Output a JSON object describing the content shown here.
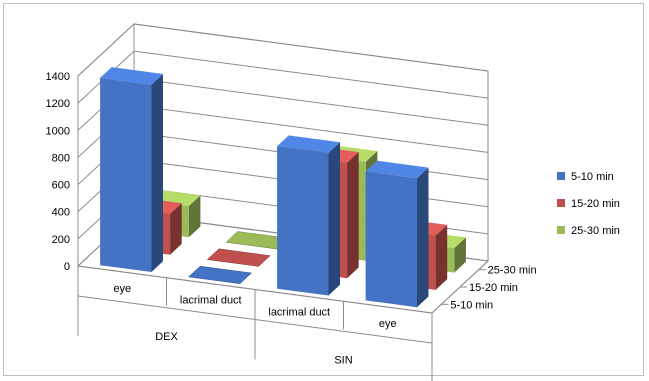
{
  "chart_data": {
    "type": "bar",
    "subtype": "3d-clustered-column",
    "title": "",
    "categories": [
      "eye",
      "lacrimal duct",
      "lacrimal duct",
      "eye"
    ],
    "groups": [
      {
        "label": "DEX",
        "categories": [
          "eye",
          "lacrimal duct"
        ]
      },
      {
        "label": "SIN",
        "categories": [
          "lacrimal duct",
          "eye"
        ]
      }
    ],
    "series": [
      {
        "name": "5-10 min",
        "color": "#4472c4",
        "values": [
          1380,
          0,
          1050,
          950
        ]
      },
      {
        "name": "15-20 min",
        "color": "#c0504d",
        "values": [
          300,
          0,
          850,
          400
        ]
      },
      {
        "name": "25-30 min",
        "color": "#9bbb59",
        "values": [
          230,
          0,
          730,
          180
        ]
      }
    ],
    "depth_labels": [
      "5-10 min",
      "15-20 min",
      "25-30 min"
    ],
    "y_ticks": [
      0,
      200,
      400,
      600,
      800,
      1000,
      1200,
      1400
    ],
    "ylim": [
      0,
      1400
    ],
    "grid": true,
    "legend": "right"
  }
}
